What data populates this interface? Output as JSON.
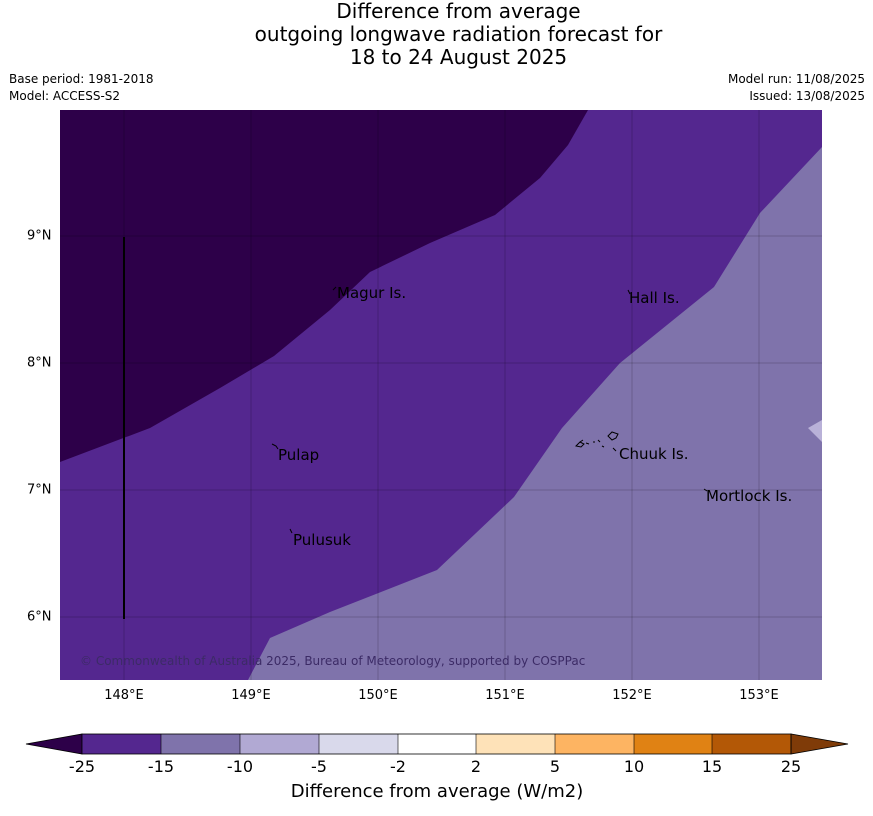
{
  "title": {
    "line1": "Difference from average",
    "line2": "outgoing longwave radiation forecast for",
    "line3": "18 to 24 August 2025"
  },
  "meta": {
    "base_period": "Base period: 1981-2018",
    "model": "Model: ACCESS-S2",
    "model_run": "Model run: 11/08/2025",
    "issued": "Issued: 13/08/2025"
  },
  "map": {
    "latitude_labels": [
      "9°N",
      "8°N",
      "7°N",
      "6°N"
    ],
    "longitude_labels": [
      "148°E",
      "149°E",
      "150°E",
      "151°E",
      "152°E",
      "153°E"
    ],
    "places": [
      {
        "name": "Magur Is.",
        "lon": 149.7,
        "lat": 8.55
      },
      {
        "name": "Hall Is.",
        "lon": 152.0,
        "lat": 8.52
      },
      {
        "name": "Pulap",
        "lon": 149.2,
        "lat": 7.25
      },
      {
        "name": "Chuuk Is.",
        "lon": 151.9,
        "lat": 7.26
      },
      {
        "name": "Mortlock Is.",
        "lon": 152.6,
        "lat": 6.95
      },
      {
        "name": "Pulusuk",
        "lon": 149.3,
        "lat": 6.6
      }
    ],
    "copyright": "© Commonwealth of Australia 2025, Bureau of Meteorology, supported by COSPPac",
    "region_colors": {
      "below_-25": "#2d0049",
      "-25_to_-15": "#54278f",
      "-15_to_-10": "#7f73ab",
      "-5_to_-2": "#b9b1d8"
    }
  },
  "colorbar": {
    "title": "Difference from average (W/m2)",
    "ticks": [
      "-25",
      "-15",
      "-10",
      "-5",
      "-2",
      "2",
      "5",
      "10",
      "15",
      "25"
    ],
    "colors": [
      "#2d0049",
      "#54278f",
      "#7f73ab",
      "#b1a9d3",
      "#d9d9eb",
      "#ffffff",
      "#fee2b8",
      "#fdb462",
      "#e08214",
      "#b35806",
      "#7f3b08"
    ]
  }
}
